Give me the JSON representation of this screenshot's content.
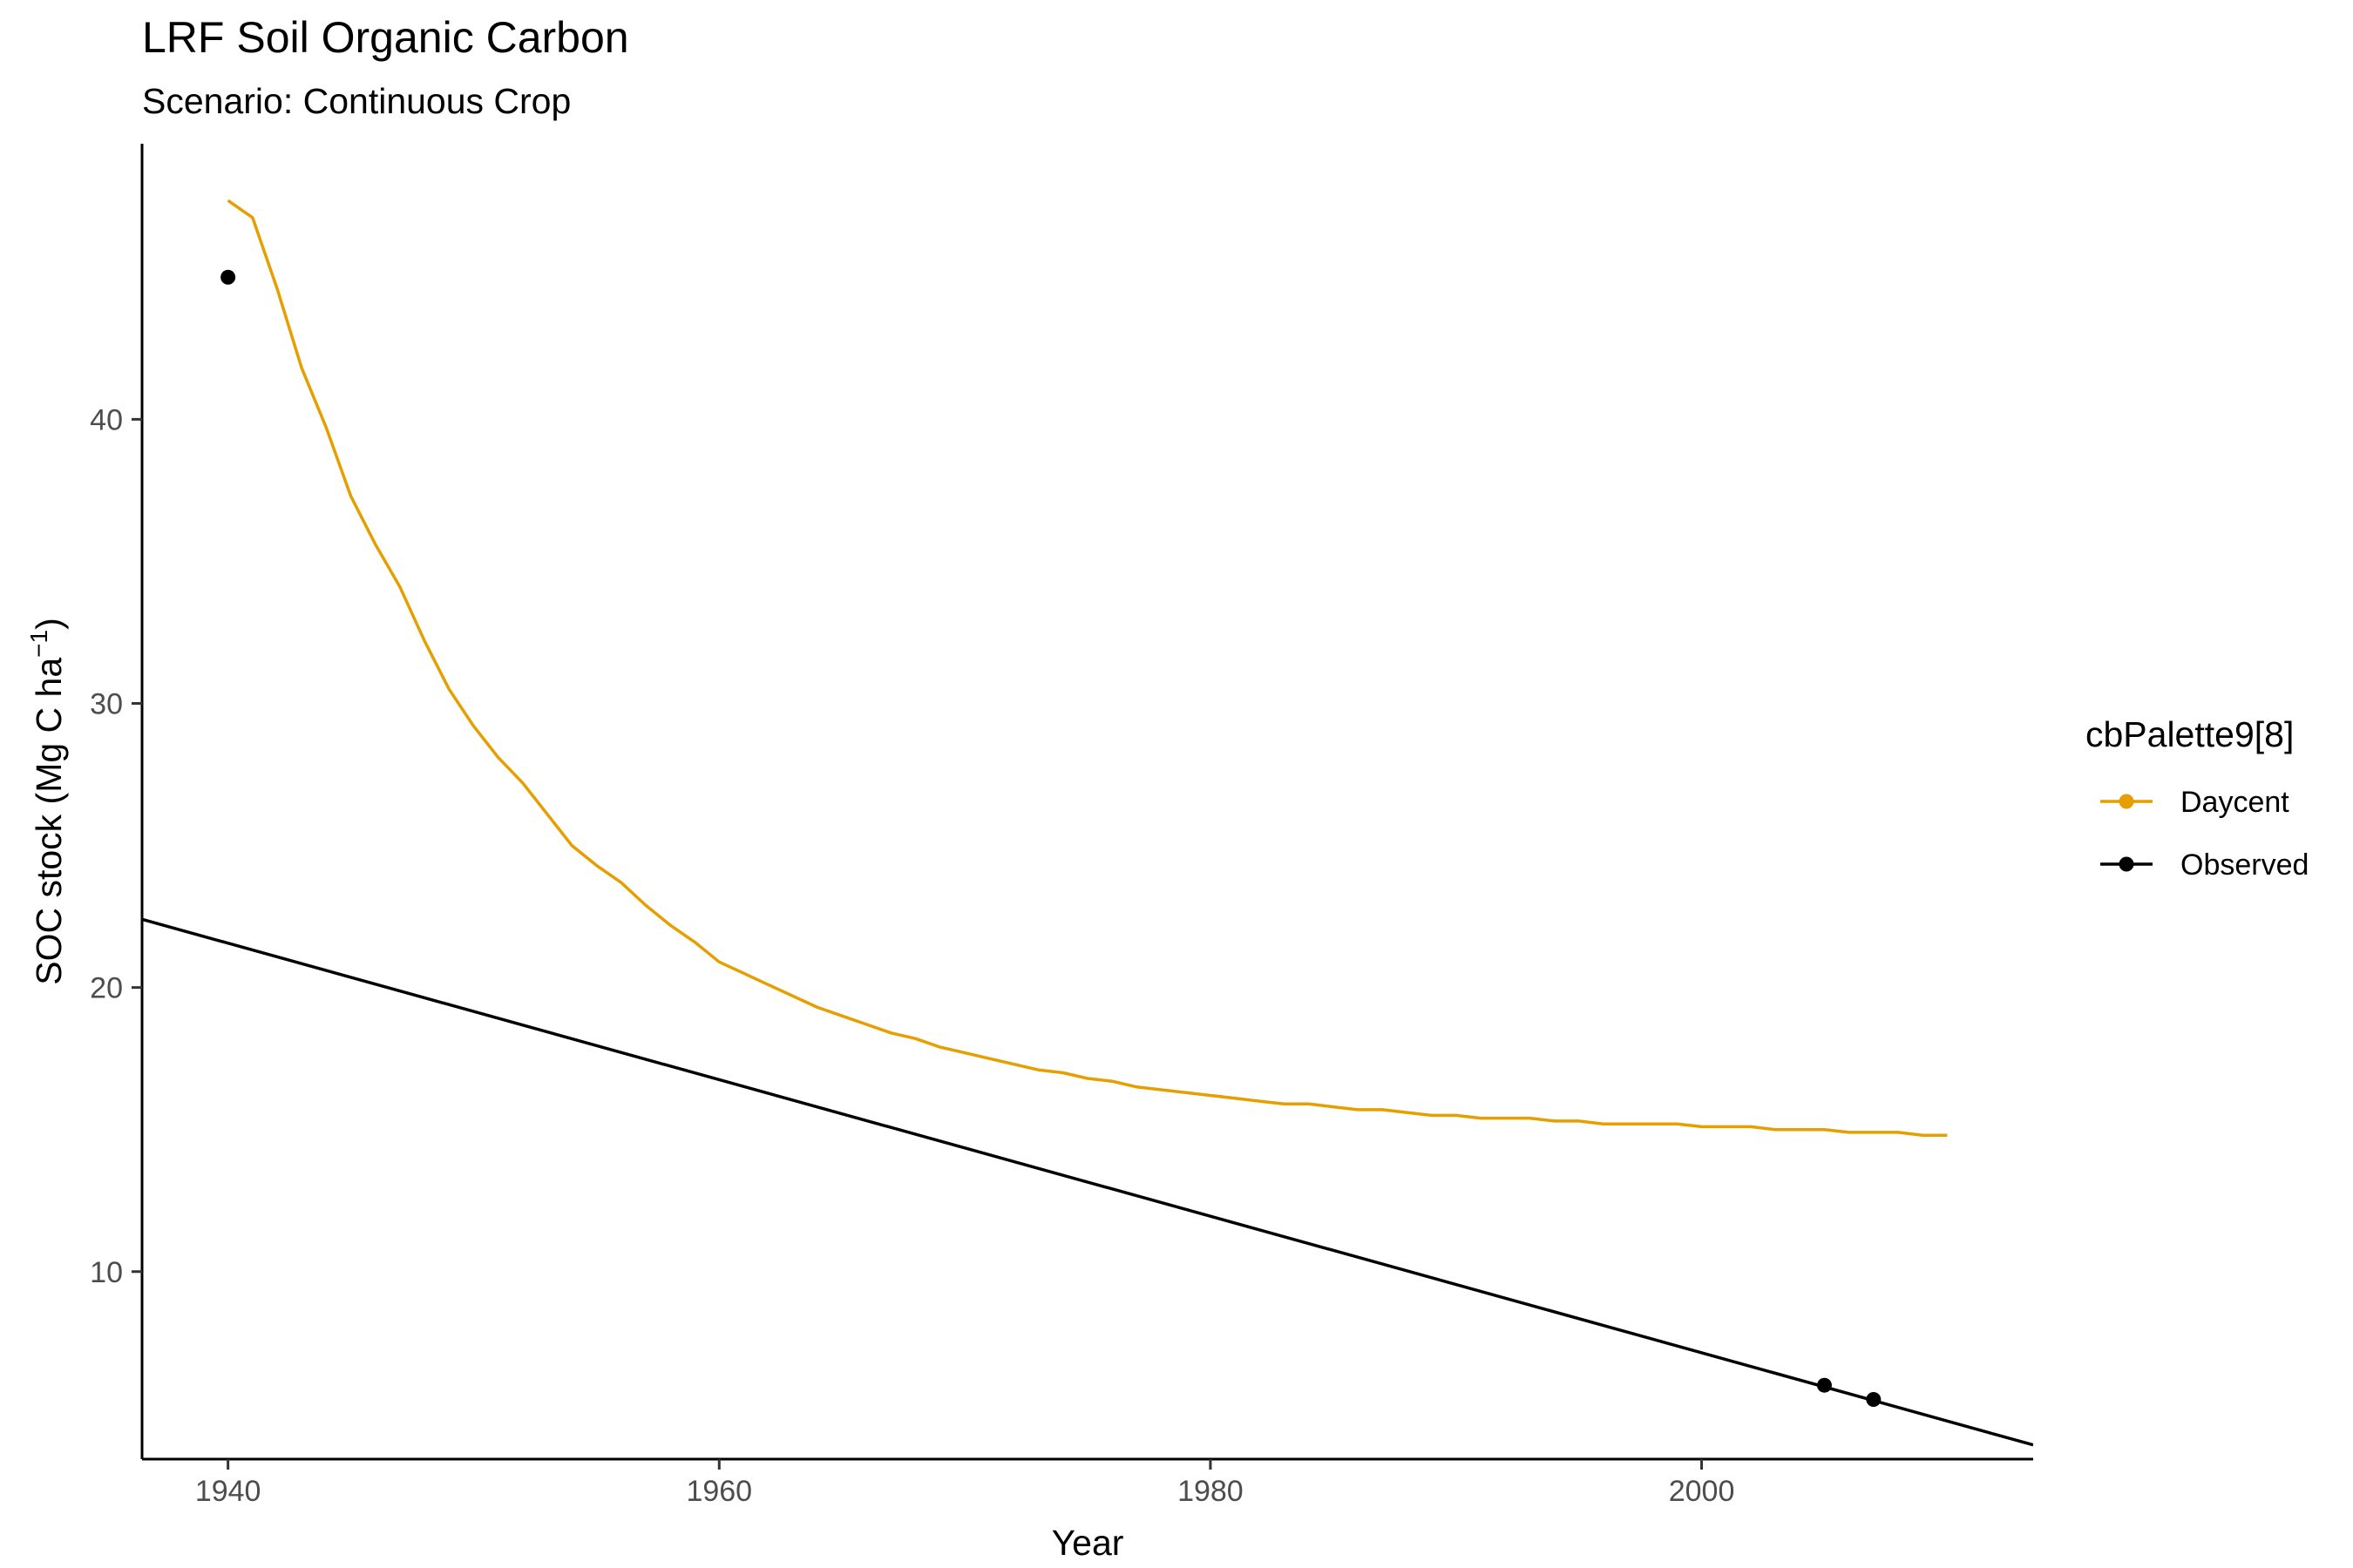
{
  "chart_data": {
    "type": "line",
    "title": "LRF Soil Organic Carbon",
    "subtitle": "Scenario: Continuous Crop",
    "xlabel": "Year",
    "ylabel": {
      "prefix": "SOC stock (Mg C ha",
      "superscript": "−1",
      "suffix": ")"
    },
    "xlim": [
      1936.5,
      2013.5
    ],
    "ylim": [
      3.4,
      49.7
    ],
    "x_ticks": [
      1940,
      1960,
      1980,
      2000
    ],
    "y_ticks": [
      10,
      20,
      30,
      40
    ],
    "grid": false,
    "legend": {
      "title": "cbPalette9[8]",
      "position": "right",
      "entries": [
        {
          "label": "Daycent",
          "color": "#E69F00"
        },
        {
          "label": "Observed",
          "color": "#000000"
        }
      ]
    },
    "series": [
      {
        "name": "Daycent",
        "kind": "line",
        "color": "#E69F00",
        "x": [
          1940,
          1941,
          1942,
          1943,
          1944,
          1945,
          1946,
          1947,
          1948,
          1949,
          1950,
          1951,
          1952,
          1953,
          1954,
          1955,
          1956,
          1957,
          1958,
          1959,
          1960,
          1961,
          1962,
          1963,
          1964,
          1965,
          1966,
          1967,
          1968,
          1969,
          1970,
          1971,
          1972,
          1973,
          1974,
          1975,
          1976,
          1977,
          1978,
          1979,
          1980,
          1981,
          1982,
          1983,
          1984,
          1985,
          1986,
          1987,
          1988,
          1989,
          1990,
          1991,
          1992,
          1993,
          1994,
          1995,
          1996,
          1997,
          1998,
          1999,
          2000,
          2001,
          2002,
          2003,
          2004,
          2005,
          2006,
          2007,
          2008,
          2009,
          2010
        ],
        "y": [
          47.7,
          47.1,
          44.6,
          41.8,
          39.7,
          37.3,
          35.6,
          34.1,
          32.2,
          30.5,
          29.2,
          28.1,
          27.2,
          26.1,
          25.0,
          24.3,
          23.7,
          22.9,
          22.2,
          21.6,
          20.9,
          20.5,
          20.1,
          19.7,
          19.3,
          19.0,
          18.7,
          18.4,
          18.2,
          17.9,
          17.7,
          17.5,
          17.3,
          17.1,
          17.0,
          16.8,
          16.7,
          16.5,
          16.4,
          16.3,
          16.2,
          16.1,
          16.0,
          15.9,
          15.9,
          15.8,
          15.7,
          15.7,
          15.6,
          15.5,
          15.5,
          15.4,
          15.4,
          15.4,
          15.3,
          15.3,
          15.2,
          15.2,
          15.2,
          15.2,
          15.1,
          15.1,
          15.1,
          15.0,
          15.0,
          15.0,
          14.9,
          14.9,
          14.9,
          14.8,
          14.8
        ]
      },
      {
        "name": "Observed",
        "kind": "points",
        "color": "#000000",
        "x": [
          1940,
          2005,
          2007
        ],
        "y": [
          45.0,
          6.0,
          5.5
        ]
      },
      {
        "name": "Observed trend",
        "kind": "line",
        "color": "#000000",
        "x": [
          1936.5,
          2013.5
        ],
        "y": [
          22.4,
          3.9
        ]
      }
    ]
  }
}
